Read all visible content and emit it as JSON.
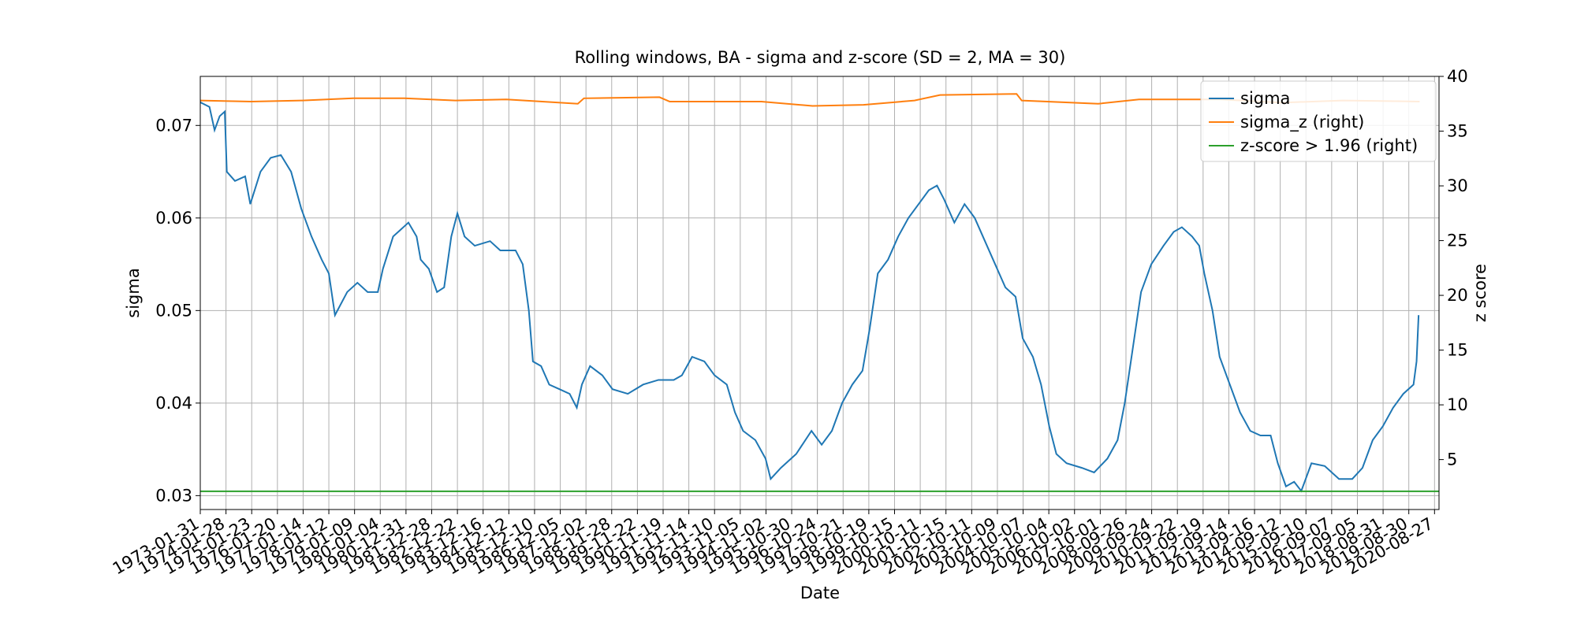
{
  "chart_data": {
    "type": "line",
    "title": "Rolling windows, BA - sigma and z-score (SD = 2, MA = 30)",
    "x_label": "Date",
    "y_label": "sigma",
    "y2_label": "z score",
    "xlim": [
      0,
      12140
    ],
    "ylim": [
      0.0285,
      0.0753
    ],
    "y2lim": [
      0.44,
      40
    ],
    "grid": true,
    "legend": "upper right",
    "yticks": [
      {
        "value": 0.03,
        "label": "0.03"
      },
      {
        "value": 0.04,
        "label": "0.04"
      },
      {
        "value": 0.05,
        "label": "0.05"
      },
      {
        "value": 0.06,
        "label": "0.06"
      },
      {
        "value": 0.07,
        "label": "0.07"
      }
    ],
    "y2ticks": [
      5,
      10,
      15,
      20,
      25,
      30,
      35,
      40
    ],
    "xticks": [
      {
        "value": 0,
        "label": "1973-01-31"
      },
      {
        "value": 252,
        "label": "1974-01-28"
      },
      {
        "value": 504,
        "label": "1975-01-23"
      },
      {
        "value": 756,
        "label": "1976-01-20"
      },
      {
        "value": 1008,
        "label": "1977-01-14"
      },
      {
        "value": 1260,
        "label": "1978-01-12"
      },
      {
        "value": 1512,
        "label": "1979-01-09"
      },
      {
        "value": 1764,
        "label": "1980-01-04"
      },
      {
        "value": 2016,
        "label": "1980-12-31"
      },
      {
        "value": 2268,
        "label": "1981-12-28"
      },
      {
        "value": 2520,
        "label": "1982-12-22"
      },
      {
        "value": 2772,
        "label": "1983-12-16"
      },
      {
        "value": 3024,
        "label": "1984-12-12"
      },
      {
        "value": 3276,
        "label": "1985-12-10"
      },
      {
        "value": 3528,
        "label": "1986-12-05"
      },
      {
        "value": 3780,
        "label": "1987-12-02"
      },
      {
        "value": 4032,
        "label": "1988-11-28"
      },
      {
        "value": 4284,
        "label": "1989-11-22"
      },
      {
        "value": 4536,
        "label": "1990-11-19"
      },
      {
        "value": 4788,
        "label": "1991-11-14"
      },
      {
        "value": 5040,
        "label": "1992-11-10"
      },
      {
        "value": 5292,
        "label": "1993-11-05"
      },
      {
        "value": 5544,
        "label": "1994-11-02"
      },
      {
        "value": 5796,
        "label": "1995-10-30"
      },
      {
        "value": 6048,
        "label": "1996-10-24"
      },
      {
        "value": 6300,
        "label": "1997-10-21"
      },
      {
        "value": 6552,
        "label": "1998-10-19"
      },
      {
        "value": 6804,
        "label": "1999-10-15"
      },
      {
        "value": 7056,
        "label": "2000-10-11"
      },
      {
        "value": 7308,
        "label": "2001-10-15"
      },
      {
        "value": 7560,
        "label": "2002-10-11"
      },
      {
        "value": 7812,
        "label": "2003-10-09"
      },
      {
        "value": 8064,
        "label": "2004-10-07"
      },
      {
        "value": 8316,
        "label": "2005-10-04"
      },
      {
        "value": 8568,
        "label": "2006-10-02"
      },
      {
        "value": 8820,
        "label": "2007-10-01"
      },
      {
        "value": 9072,
        "label": "2008-09-26"
      },
      {
        "value": 9324,
        "label": "2009-09-24"
      },
      {
        "value": 9576,
        "label": "2010-09-22"
      },
      {
        "value": 9828,
        "label": "2011-09-19"
      },
      {
        "value": 10080,
        "label": "2012-09-14"
      },
      {
        "value": 10332,
        "label": "2013-09-16"
      },
      {
        "value": 10584,
        "label": "2014-09-12"
      },
      {
        "value": 10836,
        "label": "2015-09-10"
      },
      {
        "value": 11088,
        "label": "2016-09-07"
      },
      {
        "value": 11340,
        "label": "2017-09-05"
      },
      {
        "value": 11592,
        "label": "2018-08-31"
      },
      {
        "value": 11844,
        "label": "2019-08-30"
      },
      {
        "value": 12096,
        "label": "2020-08-27"
      }
    ],
    "series": [
      {
        "name": "sigma",
        "color": "#1f77b4",
        "x": [
          0,
          90,
          140,
          190,
          240,
          260,
          340,
          440,
          490,
          590,
          690,
          790,
          890,
          990,
          1090,
          1190,
          1260,
          1320,
          1440,
          1540,
          1640,
          1740,
          1790,
          1890,
          1990,
          2040,
          2120,
          2160,
          2240,
          2320,
          2390,
          2460,
          2520,
          2590,
          2690,
          2840,
          2940,
          3090,
          3160,
          3220,
          3260,
          3340,
          3420,
          3520,
          3620,
          3690,
          3740,
          3820,
          3940,
          4040,
          4190,
          4340,
          4490,
          4640,
          4720,
          4820,
          4940,
          5040,
          5160,
          5240,
          5320,
          5440,
          5540,
          5590,
          5690,
          5840,
          5990,
          6090,
          6190,
          6290,
          6390,
          6490,
          6560,
          6640,
          6740,
          6840,
          6940,
          7040,
          7140,
          7220,
          7290,
          7390,
          7490,
          7590,
          7690,
          7790,
          7890,
          7990,
          8060,
          8160,
          8240,
          8320,
          8390,
          8490,
          8640,
          8760,
          8890,
          8990,
          9060,
          9140,
          9220,
          9320,
          9440,
          9540,
          9620,
          9720,
          9790,
          9840,
          9920,
          9990,
          10090,
          10190,
          10290,
          10390,
          10490,
          10560,
          10640,
          10720,
          10790,
          10890,
          11020,
          11160,
          11290,
          11390,
          11490,
          11590,
          11690,
          11790,
          11890,
          11920,
          11940
        ],
        "values": [
          0.0725,
          0.072,
          0.0695,
          0.071,
          0.0715,
          0.065,
          0.064,
          0.0645,
          0.0615,
          0.065,
          0.0665,
          0.0668,
          0.065,
          0.061,
          0.058,
          0.0555,
          0.054,
          0.0495,
          0.052,
          0.053,
          0.052,
          0.052,
          0.0545,
          0.058,
          0.059,
          0.0595,
          0.058,
          0.0555,
          0.0545,
          0.052,
          0.0525,
          0.058,
          0.0605,
          0.058,
          0.057,
          0.0575,
          0.0565,
          0.0565,
          0.055,
          0.05,
          0.0445,
          0.044,
          0.042,
          0.0415,
          0.041,
          0.0395,
          0.042,
          0.044,
          0.043,
          0.0415,
          0.041,
          0.042,
          0.0425,
          0.0425,
          0.043,
          0.045,
          0.0445,
          0.043,
          0.042,
          0.039,
          0.037,
          0.036,
          0.034,
          0.0318,
          0.033,
          0.0345,
          0.037,
          0.0355,
          0.037,
          0.04,
          0.042,
          0.0435,
          0.048,
          0.054,
          0.0555,
          0.058,
          0.06,
          0.0615,
          0.063,
          0.0635,
          0.062,
          0.0595,
          0.0615,
          0.06,
          0.0575,
          0.055,
          0.0525,
          0.0515,
          0.047,
          0.045,
          0.042,
          0.0375,
          0.0345,
          0.0335,
          0.033,
          0.0325,
          0.034,
          0.036,
          0.04,
          0.046,
          0.052,
          0.055,
          0.057,
          0.0585,
          0.059,
          0.058,
          0.057,
          0.054,
          0.05,
          0.045,
          0.042,
          0.039,
          0.037,
          0.0365,
          0.0365,
          0.0335,
          0.031,
          0.0315,
          0.0305,
          0.0335,
          0.0332,
          0.0318,
          0.0318,
          0.033,
          0.036,
          0.0375,
          0.0395,
          0.041,
          0.042,
          0.0445,
          0.0495
        ]
      },
      {
        "name": "sigma_z (right)",
        "color": "#ff7f0e",
        "axis": "y2",
        "x": [
          0,
          500,
          1000,
          1500,
          2000,
          2500,
          3000,
          3700,
          3760,
          4500,
          4600,
          5500,
          6000,
          6500,
          7000,
          7250,
          8000,
          8050,
          8800,
          9200,
          10000,
          10600,
          11200,
          11950
        ],
        "values": [
          37.8,
          37.7,
          37.8,
          38.0,
          38.0,
          37.8,
          37.9,
          37.5,
          38.0,
          38.1,
          37.7,
          37.7,
          37.3,
          37.4,
          37.8,
          38.3,
          38.4,
          37.8,
          37.5,
          37.9,
          37.9,
          37.6,
          37.8,
          37.7
        ]
      },
      {
        "name": "z-score > 1.96 (right)",
        "color": "#2ca02c",
        "axis": "y2",
        "x": [
          0,
          12140
        ],
        "values": [
          2.1,
          2.1
        ]
      }
    ]
  }
}
